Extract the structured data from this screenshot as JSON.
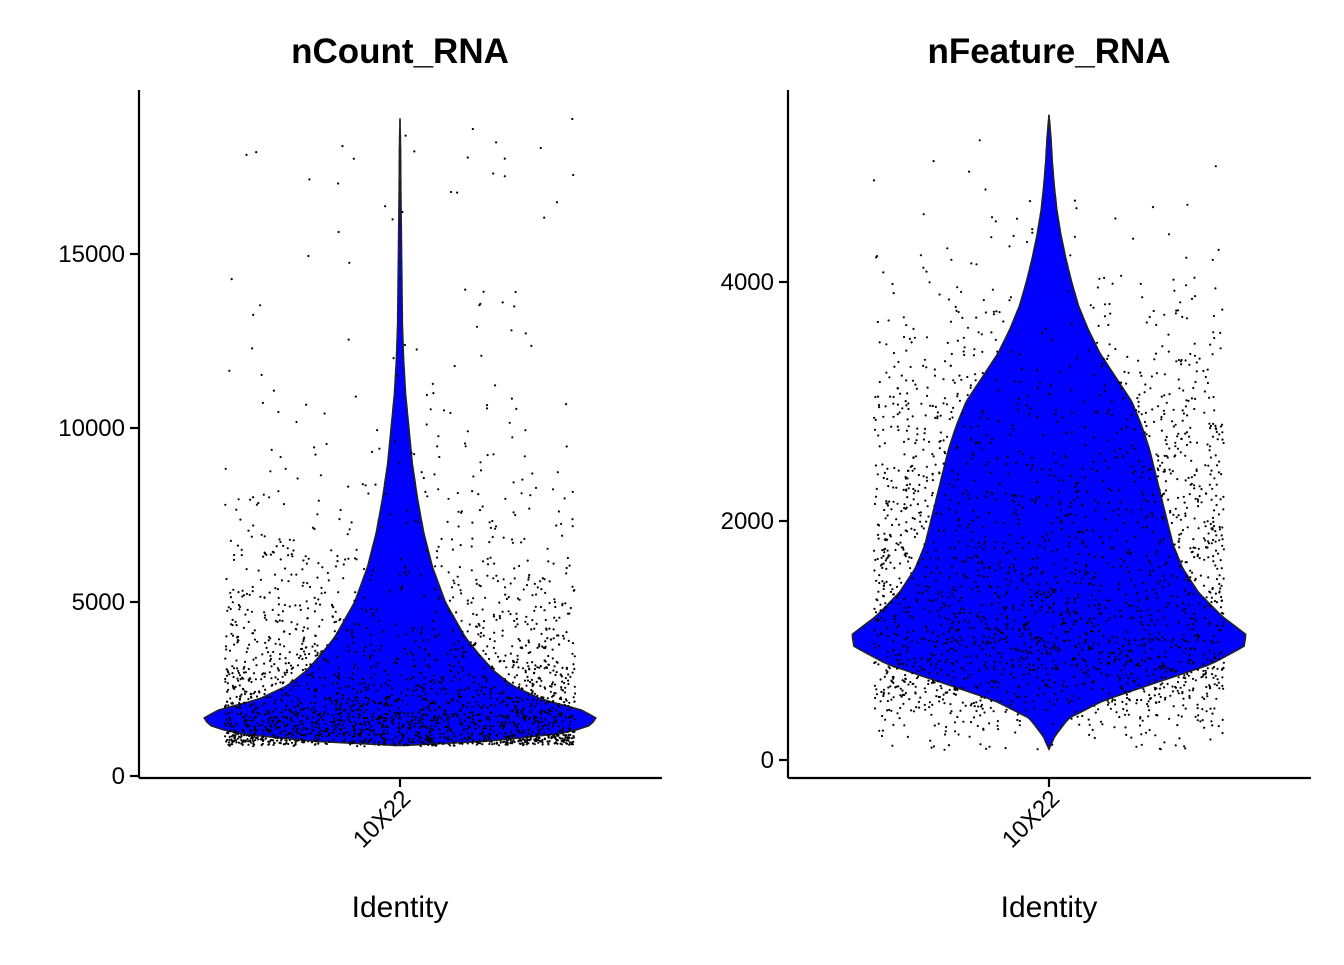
{
  "colors": {
    "violin_fill": "#0000ff",
    "violin_stroke": "#222222",
    "points": "#000000",
    "axis": "#000000"
  },
  "chart_data": [
    {
      "type": "violin",
      "title": "nCount_RNA",
      "xlabel": "Identity",
      "ylabel": "",
      "categories": [
        "10X22"
      ],
      "ylim": [
        0,
        19000
      ],
      "yticks": [
        0,
        5000,
        10000,
        15000
      ],
      "ytick_labels": [
        "0",
        "5000",
        "10000",
        "15000"
      ],
      "summary": {
        "min": 870,
        "max": 18900,
        "mode": 1650
      },
      "density_profile": [
        [
          880,
          0.02
        ],
        [
          1000,
          0.45
        ],
        [
          1200,
          0.8
        ],
        [
          1400,
          0.95
        ],
        [
          1650,
          1.0
        ],
        [
          1900,
          0.92
        ],
        [
          2200,
          0.72
        ],
        [
          2600,
          0.57
        ],
        [
          3000,
          0.48
        ],
        [
          3500,
          0.4
        ],
        [
          4000,
          0.33
        ],
        [
          4500,
          0.28
        ],
        [
          5000,
          0.23
        ],
        [
          6000,
          0.165
        ],
        [
          7000,
          0.12
        ],
        [
          8000,
          0.088
        ],
        [
          9000,
          0.062
        ],
        [
          10000,
          0.045
        ],
        [
          11000,
          0.028
        ],
        [
          12000,
          0.018
        ],
        [
          13000,
          0.012
        ],
        [
          14000,
          0.01
        ],
        [
          15000,
          0.008
        ],
        [
          16000,
          0.006
        ],
        [
          17000,
          0.004
        ],
        [
          18000,
          0.003
        ],
        [
          18900,
          0.0
        ]
      ]
    },
    {
      "type": "violin",
      "title": "nFeature_RNA",
      "xlabel": "Identity",
      "ylabel": "",
      "categories": [
        "10X22"
      ],
      "ylim": [
        -150,
        5650
      ],
      "yticks": [
        0,
        2000,
        4000
      ],
      "ytick_labels": [
        "0",
        "2000",
        "4000"
      ],
      "summary": {
        "min": 90,
        "max": 5400,
        "mode": 1000
      },
      "density_profile": [
        [
          90,
          0.0
        ],
        [
          200,
          0.03
        ],
        [
          350,
          0.1
        ],
        [
          500,
          0.28
        ],
        [
          650,
          0.55
        ],
        [
          800,
          0.82
        ],
        [
          950,
          0.99
        ],
        [
          1050,
          1.0
        ],
        [
          1200,
          0.88
        ],
        [
          1400,
          0.76
        ],
        [
          1600,
          0.68
        ],
        [
          1800,
          0.63
        ],
        [
          2000,
          0.6
        ],
        [
          2200,
          0.57
        ],
        [
          2400,
          0.54
        ],
        [
          2600,
          0.51
        ],
        [
          2800,
          0.47
        ],
        [
          3000,
          0.42
        ],
        [
          3200,
          0.34
        ],
        [
          3400,
          0.26
        ],
        [
          3600,
          0.2
        ],
        [
          3800,
          0.15
        ],
        [
          4000,
          0.115
        ],
        [
          4200,
          0.085
        ],
        [
          4400,
          0.06
        ],
        [
          4600,
          0.04
        ],
        [
          4800,
          0.027
        ],
        [
          5000,
          0.017
        ],
        [
          5200,
          0.01
        ],
        [
          5400,
          0.0
        ]
      ]
    }
  ]
}
